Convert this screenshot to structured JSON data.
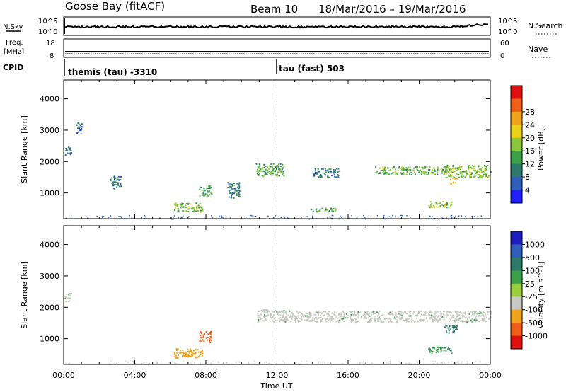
{
  "header": {
    "radar": "Goose Bay (fitACF)",
    "beam": "Beam 10",
    "date_range": "18/Mar/2016 – 19/Mar/2016"
  },
  "summary_panels": {
    "nsky_label": "N.Sky",
    "nsearch_label": "N.Search",
    "nsky_ticks": [
      "10^5",
      "10^0"
    ],
    "nsearch_ticks": [
      "10^5",
      "10^0"
    ],
    "freq_label": "Freq.",
    "freq_unit": "[MHz]",
    "freq_ticks": [
      "18",
      "8"
    ],
    "nave_label": "Nave",
    "nave_ticks": [
      "60",
      "0"
    ],
    "cpid_label": "CPID",
    "cpid_left": "themis (tau) -3310",
    "cpid_right": "tau (fast) 503"
  },
  "colors": {
    "bar_blue_dark": "#1f3c8f",
    "bar_blue": "#2f64b8",
    "bar_teal": "#2e8b57",
    "bar_green": "#3fae3f",
    "bar_yellowgreen": "#9ccc2c",
    "bar_yellow": "#e8d21a",
    "bar_orange": "#f08c1a",
    "bar_red": "#e01010",
    "grey_velocity": "#c8c8c2"
  },
  "chart_data": [
    {
      "type": "heatmap",
      "title": "",
      "xlabel": "",
      "ylabel": "Slant Range [km]",
      "xlim": [
        0,
        24
      ],
      "ylim": [
        180,
        4600
      ],
      "yticks": [
        "1000",
        "2000",
        "3000",
        "4000"
      ],
      "colorbar": {
        "label": "Power [dB]",
        "ticks": [
          "4",
          "8",
          "12",
          "16",
          "20",
          "24",
          "28"
        ],
        "colors": [
          "#1f1fff",
          "#2f5fb8",
          "#2e7a6a",
          "#3aa04a",
          "#8cc63c",
          "#e8d21a",
          "#f0a21a",
          "#f06018",
          "#e01010"
        ]
      },
      "features": [
        {
          "t0": 0.0,
          "t1": 0.4,
          "r0": 2200,
          "r1": 2500,
          "value": 8
        },
        {
          "t0": 0.7,
          "t1": 1.0,
          "r0": 2900,
          "r1": 3300,
          "value": 8
        },
        {
          "t0": 2.6,
          "t1": 3.2,
          "r0": 1150,
          "r1": 1550,
          "value": 8
        },
        {
          "t0": 6.2,
          "t1": 7.8,
          "r0": 400,
          "r1": 700,
          "value": 17
        },
        {
          "t0": 7.6,
          "t1": 8.3,
          "r0": 900,
          "r1": 1250,
          "value": 14
        },
        {
          "t0": 9.2,
          "t1": 9.9,
          "r0": 850,
          "r1": 1350,
          "value": 9
        },
        {
          "t0": 10.8,
          "t1": 12.4,
          "r0": 1550,
          "r1": 1950,
          "value": 15
        },
        {
          "t0": 14.0,
          "t1": 15.5,
          "r0": 1500,
          "r1": 1800,
          "value": 10
        },
        {
          "t0": 17.5,
          "t1": 21.5,
          "r0": 1600,
          "r1": 1850,
          "value": 16
        },
        {
          "t0": 21.4,
          "t1": 24.0,
          "r0": 1500,
          "r1": 1900,
          "value": 17
        },
        {
          "t0": 21.7,
          "t1": 22.1,
          "r0": 1300,
          "r1": 1500,
          "value": 26
        },
        {
          "t0": 20.5,
          "t1": 21.8,
          "r0": 550,
          "r1": 750,
          "value": 18
        },
        {
          "t0": 13.8,
          "t1": 15.3,
          "r0": 420,
          "r1": 540,
          "value": 15
        }
      ]
    },
    {
      "type": "heatmap",
      "title": "",
      "xlabel": "Time UT",
      "ylabel": "Slant Range [km]",
      "xlim": [
        0,
        24
      ],
      "ylim": [
        180,
        4600
      ],
      "xticks": [
        "00:00",
        "04:00",
        "08:00",
        "12:00",
        "16:00",
        "20:00",
        "00:00"
      ],
      "yticks": [
        "1000",
        "2000",
        "3000",
        "4000"
      ],
      "colorbar": {
        "label": "Velocity [m s^-1]",
        "ticks": [
          "1000",
          "500",
          "100",
          "25",
          "-25",
          "-100",
          "-500",
          "-1000"
        ],
        "colors": [
          "#1f1fbf",
          "#2f5fb8",
          "#2e7a6a",
          "#3aa04a",
          "#9acc3c",
          "#c8c8c2",
          "#f0a21a",
          "#f06018",
          "#e01010"
        ]
      },
      "features": [
        {
          "t0": 0.0,
          "t1": 0.4,
          "r0": 2200,
          "r1": 2500,
          "value": 0
        },
        {
          "t0": 6.2,
          "t1": 7.8,
          "r0": 400,
          "r1": 700,
          "value": -300
        },
        {
          "t0": 7.6,
          "t1": 8.3,
          "r0": 900,
          "r1": 1250,
          "value": -600
        },
        {
          "t0": 10.8,
          "t1": 12.4,
          "r0": 1550,
          "r1": 1950,
          "value": 0
        },
        {
          "t0": 12.4,
          "t1": 24.0,
          "r0": 1550,
          "r1": 1900,
          "value": 0
        },
        {
          "t0": 21.4,
          "t1": 22.1,
          "r0": 1200,
          "r1": 1450,
          "value": 400
        },
        {
          "t0": 20.5,
          "t1": 21.8,
          "r0": 550,
          "r1": 750,
          "value": 80
        }
      ]
    }
  ]
}
